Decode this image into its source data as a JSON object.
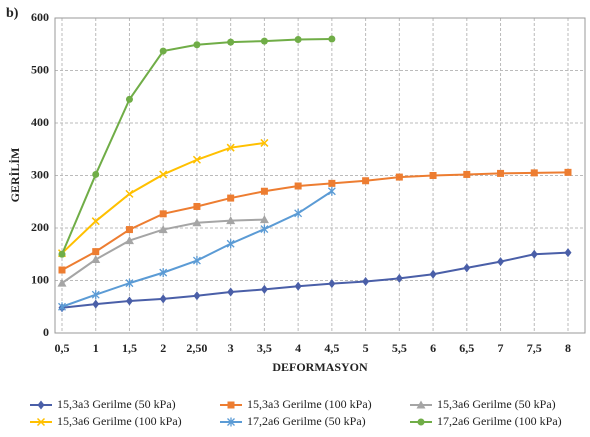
{
  "chart_data": {
    "type": "line",
    "panel_label": "b)",
    "x_label": "DEFORMASYON",
    "y_label": "GERİLİM",
    "categories": [
      "0,5",
      "1",
      "1,5",
      "2",
      "2,50",
      "3",
      "3,5",
      "4",
      "4,5",
      "5",
      "5,5",
      "6",
      "6,5",
      "7",
      "7,5",
      "8"
    ],
    "ylim": [
      0,
      600
    ],
    "yticks": [
      0,
      100,
      200,
      300,
      400,
      500,
      600
    ],
    "grid": true,
    "series": [
      {
        "name": "15,3a3 Gerilme (50 kPa)",
        "color": "#4a5fa8",
        "marker": "diamond",
        "values": [
          48,
          55,
          61,
          65,
          71,
          78,
          83,
          89,
          94,
          98,
          104,
          112,
          124,
          136,
          150,
          153
        ]
      },
      {
        "name": "15,3a3 Gerilme (100 kPa)",
        "color": "#ed7d31",
        "marker": "square",
        "values": [
          120,
          155,
          197,
          227,
          241,
          257,
          270,
          280,
          285,
          290,
          297,
          300,
          302,
          304,
          305,
          306
        ]
      },
      {
        "name": "15,3a6 Gerilme (50 kPa)",
        "color": "#a5a5a5",
        "marker": "triangle",
        "values": [
          95,
          140,
          176,
          197,
          210,
          214,
          216,
          null,
          null,
          null,
          null,
          null,
          null,
          null,
          null,
          null
        ]
      },
      {
        "name": "15,3a6 Gerilme (100 kPa)",
        "color": "#ffc000",
        "marker": "x",
        "values": [
          152,
          213,
          265,
          302,
          330,
          353,
          362,
          null,
          null,
          null,
          null,
          null,
          null,
          null,
          null,
          null
        ]
      },
      {
        "name": "17,2a6 Gerilme (50 kPa)",
        "color": "#5b9bd5",
        "marker": "star",
        "values": [
          50,
          73,
          95,
          115,
          138,
          170,
          198,
          228,
          270,
          null,
          null,
          null,
          null,
          null,
          null,
          null
        ]
      },
      {
        "name": "17,2a6 Gerilme (100 kPa)",
        "color": "#70ad47",
        "marker": "circle",
        "values": [
          150,
          302,
          445,
          537,
          549,
          554,
          556,
          559,
          560,
          null,
          null,
          null,
          null,
          null,
          null,
          null
        ]
      }
    ]
  }
}
